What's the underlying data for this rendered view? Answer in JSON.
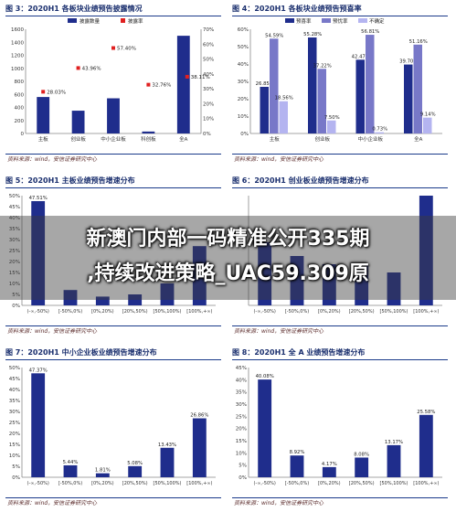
{
  "overlay": {
    "line1": "新澳门内部一码精准公开335期",
    "line2": ",持续改进策略_UAC59.309原"
  },
  "source_text": "资料来源：wind，安信证券研究中心",
  "colors": {
    "navy": "#1f2d8c",
    "red": "#e02020",
    "purple": "#7878c8",
    "lav": "#b4b4f0",
    "frame": "#1a3a8a"
  },
  "chart_data": [
    {
      "id": "c3",
      "title": "图 3：2020H1 各板块业绩预告披露情况",
      "type": "bar+scatter",
      "categories": [
        "主板",
        "创业板",
        "中小企业板",
        "科创板",
        "全A"
      ],
      "legend": [
        "披露数量",
        "披露率"
      ],
      "bar_values": [
        560,
        350,
        540,
        30,
        1500
      ],
      "rate_values": [
        28.03,
        43.96,
        57.4,
        32.76,
        38.11
      ],
      "rate_labels": [
        "28.03%",
        "43.96%",
        "57.40%",
        "32.76%",
        "38.11%"
      ],
      "ylim": [
        0,
        1600
      ],
      "yticks": [
        "0",
        "200",
        "400",
        "600",
        "800",
        "1000",
        "1200",
        "1400",
        "1600"
      ],
      "y2lim": [
        0,
        70
      ],
      "y2ticks": [
        "0%",
        "10%",
        "20%",
        "30%",
        "40%",
        "50%",
        "60%",
        "70%"
      ]
    },
    {
      "id": "c4",
      "title": "图 4：2020H1 各板块业绩预告预喜率",
      "type": "grouped-bar",
      "categories": [
        "主板",
        "创业板",
        "中小企业板",
        "全A"
      ],
      "legend": [
        "预喜率",
        "预忧率",
        "不确定"
      ],
      "series": [
        {
          "name": "预喜率",
          "values": [
            26.85,
            55.28,
            42.47,
            39.7
          ],
          "labels": [
            "26.85%",
            "55.28%",
            "42.47%",
            "39.70%"
          ]
        },
        {
          "name": "预忧率",
          "values": [
            54.59,
            37.22,
            56.81,
            51.16
          ],
          "labels": [
            "54.59%",
            "37.22%",
            "56.81%",
            "51.16%"
          ]
        },
        {
          "name": "不确定",
          "values": [
            18.56,
            7.5,
            0.73,
            9.14
          ],
          "labels": [
            "18.56%",
            "7.50%",
            "0.73%",
            "9.14%"
          ]
        }
      ],
      "ylim": [
        0,
        60
      ],
      "yticks": [
        "0%",
        "10%",
        "20%",
        "30%",
        "40%",
        "50%",
        "60%"
      ]
    },
    {
      "id": "c5",
      "title": "图 5：2020H1 主板业绩预告增速分布",
      "type": "bar",
      "categories": [
        "(-∞,-50%)",
        "[-50%,0%)",
        "[0%,20%)",
        "[20%,50%)",
        "[50%,100%)",
        "[100%,+∞)"
      ],
      "values": [
        47.51,
        7.0,
        4.0,
        5.0,
        10.0,
        27.0
      ],
      "labels": [
        "47.51%",
        "",
        "",
        "",
        "",
        ""
      ],
      "ylim": [
        0,
        50
      ],
      "yticks": [
        "0%",
        "5%",
        "10%",
        "15%",
        "20%",
        "25%",
        "30%",
        "35%",
        "40%",
        "45%",
        "50%"
      ]
    },
    {
      "id": "c6",
      "title": "图 6：2020H1 创业板业绩预告增速分布",
      "type": "bar",
      "categories": [
        "(-∞,-50%)",
        "[-50%,0%)",
        "[0%,20%)",
        "[20%,50%)",
        "[50%,100%)",
        "[100%,+∞)"
      ],
      "values": [
        23.0,
        18.0,
        15.0,
        15.0,
        12.0,
        40.0
      ],
      "labels": [
        "",
        "",
        "",
        "",
        "",
        ""
      ],
      "ylim": [
        0,
        40
      ],
      "yticks": []
    },
    {
      "id": "c7",
      "title": "图 7：2020H1 中小企业板业绩预告增速分布",
      "type": "bar",
      "categories": [
        "(-∞,-50%)",
        "[-50%,0%)",
        "[0%,20%)",
        "[20%,50%)",
        "[50%,100%)",
        "[100%,+∞)"
      ],
      "values": [
        47.37,
        5.44,
        1.81,
        5.08,
        13.43,
        26.86
      ],
      "labels": [
        "47.37%",
        "5.44%",
        "1.81%",
        "5.08%",
        "13.43%",
        "26.86%"
      ],
      "ylim": [
        0,
        50
      ],
      "yticks": [
        "0%",
        "5%",
        "10%",
        "15%",
        "20%",
        "25%",
        "30%",
        "35%",
        "40%",
        "45%",
        "50%"
      ]
    },
    {
      "id": "c8",
      "title": "图 8：2020H1 全 A 业绩预告增速分布",
      "type": "bar",
      "categories": [
        "(-∞,-50%)",
        "[-50%,0%)",
        "[0%,20%)",
        "[20%,50%)",
        "[50%,100%)",
        "[100%,+∞)"
      ],
      "values": [
        40.08,
        8.92,
        4.17,
        8.08,
        13.17,
        25.58
      ],
      "labels": [
        "40.08%",
        "8.92%",
        "4.17%",
        "8.08%",
        "13.17%",
        "25.58%"
      ],
      "ylim": [
        0,
        45
      ],
      "yticks": [
        "0%",
        "5%",
        "10%",
        "15%",
        "20%",
        "25%",
        "30%",
        "35%",
        "40%",
        "45%"
      ]
    }
  ]
}
